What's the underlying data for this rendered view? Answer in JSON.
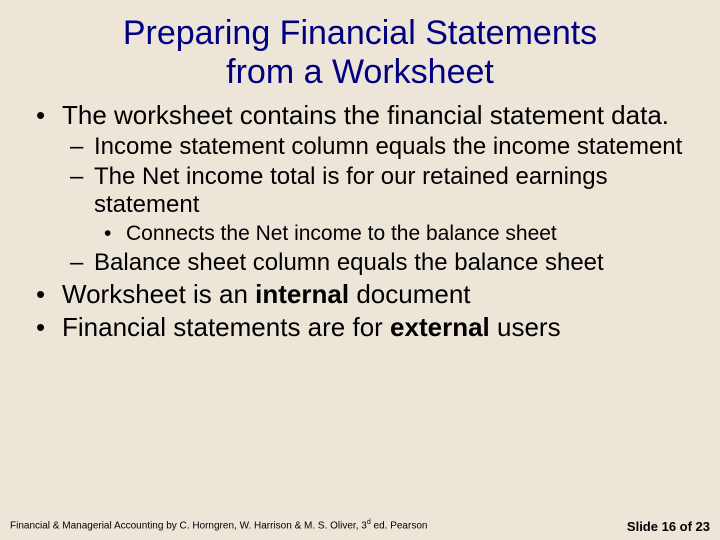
{
  "background_color": "#ece5d8",
  "title_color": "#000080",
  "text_color": "#000000",
  "title_line1": "Preparing Financial Statements",
  "title_line2": "from a Worksheet",
  "bullets": {
    "b1": "The worksheet contains the financial statement data.",
    "b1a": "Income statement column equals the income statement",
    "b1b": "The Net income total is for our retained earnings statement",
    "b1b1": "Connects the Net income to the balance sheet",
    "b1c": "Balance sheet column equals the balance sheet",
    "b2_pre": "Worksheet is an ",
    "b2_bold": "internal",
    "b2_post": " document",
    "b3_pre": "Financial statements are for ",
    "b3_bold": "external",
    "b3_post": " users"
  },
  "footer": {
    "left_pre": "Financial & Managerial Accounting by C. Horngren, W. Harrison & M. S. Oliver, 3",
    "left_sup": "d",
    "left_post": " ed. Pearson",
    "right": "Slide 16 of 23"
  }
}
